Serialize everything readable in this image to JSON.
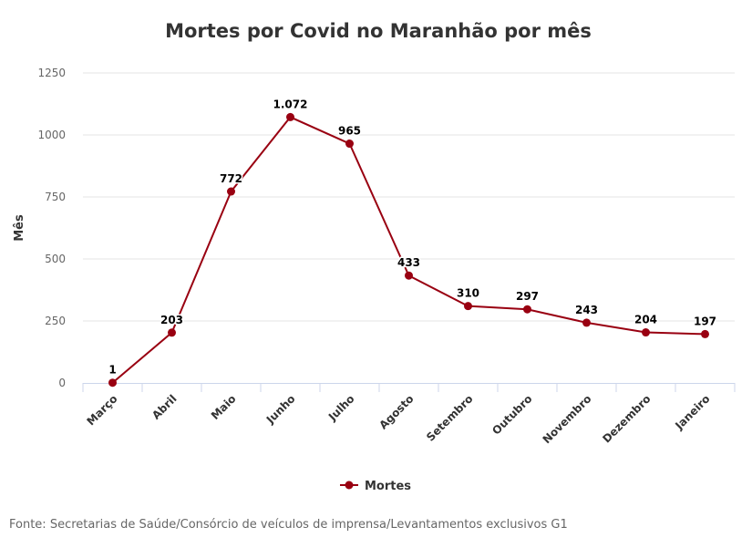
{
  "chart_data": {
    "type": "line",
    "title": "Mortes por Covid no Maranhão por mês",
    "xlabel": "",
    "ylabel": "Mês",
    "categories": [
      "Março",
      "Abril",
      "Maio",
      "Junho",
      "Julho",
      "Agosto",
      "Setembro",
      "Outubro",
      "Novembro",
      "Dezembro",
      "Janeiro"
    ],
    "series": [
      {
        "name": "Mortes",
        "values": [
          1,
          203,
          772,
          1072,
          965,
          433,
          310,
          297,
          243,
          204,
          197
        ],
        "labels": [
          "1",
          "203",
          "772",
          "1.072",
          "965",
          "433",
          "310",
          "297",
          "243",
          "204",
          "197"
        ],
        "color": "#990011"
      }
    ],
    "ylim": [
      0,
      1250
    ],
    "yticks": [
      0,
      250,
      500,
      750,
      1000,
      1250
    ],
    "grid": true,
    "legend": "bottom-center"
  },
  "source": "Fonte: Secretarias de Saúde/Consórcio de veículos de imprensa/Levantamentos exclusivos G1"
}
